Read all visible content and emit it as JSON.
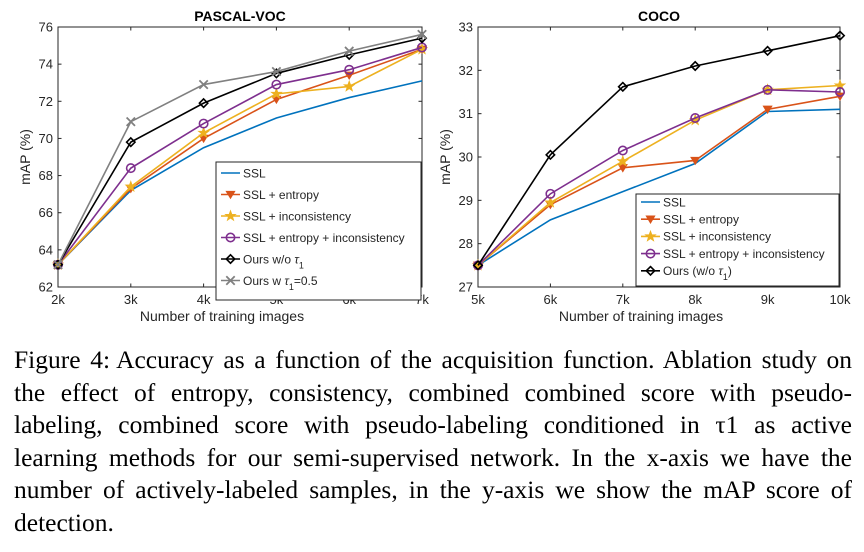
{
  "chart_data": [
    {
      "type": "line",
      "title": "PASCAL-VOC",
      "xlabel": "Number of  training images",
      "ylabel": "mAP (%)",
      "categories": [
        "2k",
        "3k",
        "4k",
        "5k",
        "6k",
        "7k"
      ],
      "x": [
        2,
        3,
        4,
        5,
        6,
        7
      ],
      "xlim": [
        2,
        7
      ],
      "ylim": [
        62,
        76
      ],
      "yticks": [
        62,
        64,
        66,
        68,
        70,
        72,
        74,
        76
      ],
      "legend_position": "lower-right",
      "series": [
        {
          "name": "SSL",
          "legend": [
            "SSL"
          ],
          "color": "#0072BD",
          "marker": "none",
          "values": [
            63.2,
            67.2,
            69.5,
            71.1,
            72.2,
            73.1
          ]
        },
        {
          "name": "SSL + entropy",
          "legend": [
            "SSL + entropy"
          ],
          "color": "#D95319",
          "marker": "triangle-down",
          "values": [
            63.2,
            67.3,
            70.0,
            72.1,
            73.4,
            74.8
          ]
        },
        {
          "name": "SSL + inconsistency",
          "legend": [
            "SSL + inconsistency"
          ],
          "color": "#EDB120",
          "marker": "star",
          "values": [
            63.2,
            67.4,
            70.3,
            72.4,
            72.8,
            74.8
          ]
        },
        {
          "name": "SSL + entropy + inconsistency",
          "legend": [
            "SSL + entropy + inconsistency"
          ],
          "color": "#7E2F8E",
          "marker": "circle",
          "values": [
            63.2,
            68.4,
            70.8,
            72.9,
            73.7,
            74.9
          ]
        },
        {
          "name": "Ours w/o τ1",
          "legend": [
            "Ours w/o ",
            "τ",
            "1"
          ],
          "color": "#000000",
          "marker": "diamond",
          "values": [
            63.2,
            69.8,
            71.9,
            73.5,
            74.5,
            75.4
          ]
        },
        {
          "name": "Ours w τ1=0.5",
          "legend": [
            "Ours w ",
            "τ",
            "1",
            "=0.5"
          ],
          "color": "#808080",
          "marker": "x",
          "values": [
            63.2,
            70.9,
            72.9,
            73.6,
            74.7,
            75.6
          ]
        }
      ]
    },
    {
      "type": "line",
      "title": "COCO",
      "xlabel": "Number of  training images",
      "ylabel": "mAP (%)",
      "categories": [
        "5k",
        "6k",
        "7k",
        "8k",
        "9k",
        "10k"
      ],
      "x": [
        5,
        6,
        7,
        8,
        9,
        10
      ],
      "xlim": [
        5,
        10
      ],
      "ylim": [
        27,
        33
      ],
      "yticks": [
        27,
        28,
        29,
        30,
        31,
        32,
        33
      ],
      "legend_position": "lower-right",
      "series": [
        {
          "name": "SSL",
          "legend": [
            "SSL"
          ],
          "color": "#0072BD",
          "marker": "none",
          "values": [
            27.5,
            28.55,
            29.2,
            29.85,
            31.05,
            31.1
          ]
        },
        {
          "name": "SSL + entropy",
          "legend": [
            "SSL + entropy"
          ],
          "color": "#D95319",
          "marker": "triangle-down",
          "values": [
            27.5,
            28.9,
            29.75,
            29.92,
            31.1,
            31.4
          ]
        },
        {
          "name": "SSL + inconsistency",
          "legend": [
            "SSL + inconsistency"
          ],
          "color": "#EDB120",
          "marker": "star",
          "values": [
            27.5,
            28.95,
            29.9,
            30.85,
            31.55,
            31.65
          ]
        },
        {
          "name": "SSL + entropy + inconsistency",
          "legend": [
            "SSL + entropy + inconsistency"
          ],
          "color": "#7E2F8E",
          "marker": "circle",
          "values": [
            27.5,
            29.15,
            30.15,
            30.9,
            31.55,
            31.5
          ]
        },
        {
          "name": "Ours (w/o τ1)",
          "legend": [
            "Ours (w/o ",
            "τ",
            "1",
            ")"
          ],
          "color": "#000000",
          "marker": "diamond",
          "values": [
            27.5,
            30.05,
            31.62,
            32.1,
            32.45,
            32.8
          ]
        }
      ]
    }
  ],
  "caption": {
    "label": "Figure 4:",
    "text": "Accuracy as a function of the acquisition function. Ablation study on the effect of entropy, consistency, combined combined score with pseudo-labeling, combined score with pseudo-labeling conditioned in τ1 as active learning methods for our semi-supervised network. In the x-axis we have the number of actively-labeled samples, in the y-axis we show the mAP score of detection."
  }
}
